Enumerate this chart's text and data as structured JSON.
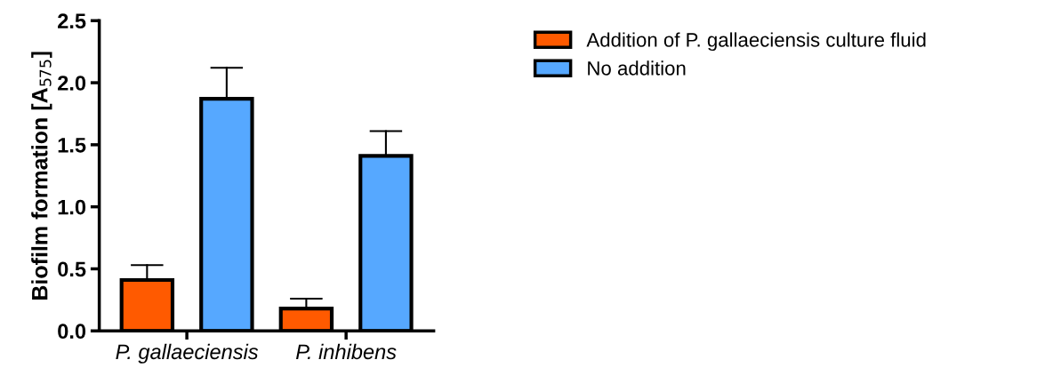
{
  "chart_data": {
    "type": "bar",
    "ylabel": "Biofilm formation [A$_{575}$]",
    "categories": [
      "P. gallaeciensis",
      "P. inhibens"
    ],
    "series": [
      {
        "name": "Addition of P. gallaeciensis culture fluid",
        "color": "#ff5a00",
        "values": [
          0.41,
          0.18
        ],
        "errors": [
          [
            0.41,
            0.53
          ],
          [
            0.18,
            0.26
          ]
        ]
      },
      {
        "name": "No addition",
        "color": "#56a8ff",
        "values": [
          1.87,
          1.41
        ],
        "errors": [
          [
            1.87,
            2.12
          ],
          [
            1.41,
            1.61
          ]
        ]
      }
    ],
    "ylim": [
      0,
      2.5
    ],
    "yticks": [
      {
        "value": 0,
        "label": "0.0"
      },
      {
        "value": 0.5,
        "label": "0.5"
      },
      {
        "value": 1,
        "label": "1.0"
      },
      {
        "value": 1.5,
        "label": "1.5"
      },
      {
        "value": 2,
        "label": "2.0"
      },
      {
        "value": 2.5,
        "label": "2.5"
      }
    ],
    "grid": false,
    "legend": "top right"
  }
}
